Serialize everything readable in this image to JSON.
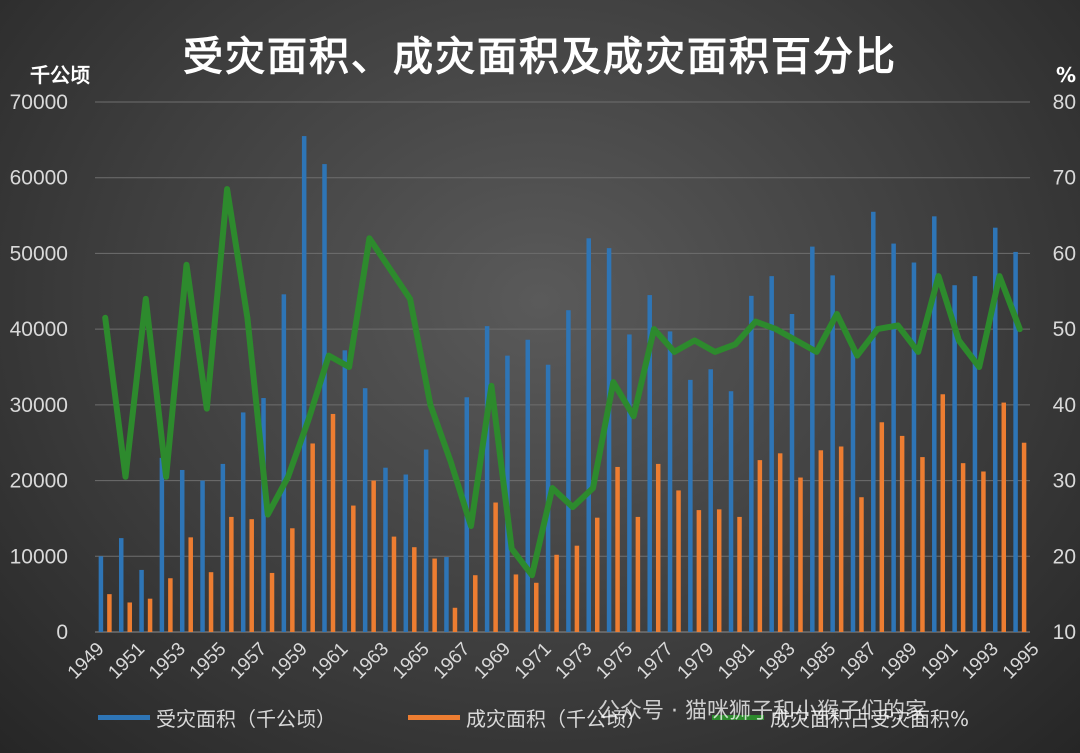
{
  "chart_data": {
    "type": "bar",
    "title": "受灾面积、成灾面积及成灾面积百分比",
    "y_left_unit": "千公顷",
    "y_right_unit": "%",
    "ylim_left": [
      0,
      70000
    ],
    "ylim_right": [
      10,
      80
    ],
    "y_left_ticks": [
      "0",
      "10000",
      "20000",
      "30000",
      "40000",
      "50000",
      "60000",
      "70000"
    ],
    "y_right_ticks": [
      "10",
      "20",
      "30",
      "40",
      "50",
      "60",
      "70",
      "80"
    ],
    "grid": true,
    "legend_position": "bottom",
    "x_tick_labels": [
      "1949",
      "1951",
      "1953",
      "1955",
      "1957",
      "1959",
      "1961",
      "1963",
      "1965",
      "1967",
      "1969",
      "1971",
      "1973",
      "1975",
      "1977",
      "1979",
      "1981",
      "1983",
      "1985",
      "1987",
      "1989",
      "1991",
      "1993",
      "1995"
    ],
    "categories": [
      "1950",
      "1951",
      "1952",
      "1953",
      "1954",
      "1955",
      "1956",
      "1957",
      "1958",
      "1959",
      "1960",
      "1961",
      "1962",
      "1963",
      "1964",
      "1965",
      "1966",
      "1967",
      "1968",
      "1969",
      "1970",
      "1971",
      "1972",
      "1973",
      "1974",
      "1975",
      "1976",
      "1977",
      "1978",
      "1979",
      "1980",
      "1981",
      "1982",
      "1983",
      "1984",
      "1985",
      "1986",
      "1987",
      "1988",
      "1989",
      "1990",
      "1991",
      "1992",
      "1993",
      "1994",
      "1995"
    ],
    "series": [
      {
        "name": "受灾面积（千公顷）",
        "color": "#2e75b6",
        "type": "bar",
        "axis": "left",
        "values": [
          10000,
          12400,
          8200,
          23000,
          21400,
          20000,
          22200,
          29000,
          30900,
          44600,
          65500,
          61800,
          37200,
          32200,
          21700,
          20800,
          24100,
          9900,
          31000,
          40400,
          36500,
          38600,
          35300,
          42500,
          52000,
          50700,
          39300,
          44500,
          39700,
          33300,
          34700,
          31800,
          44400,
          47000,
          42000,
          50900,
          47100,
          37800,
          55500,
          51300,
          48800,
          54900,
          45800,
          47000,
          53400,
          50200
        ]
      },
      {
        "name": "成灾面积（千公顷）",
        "color": "#ed7d31",
        "type": "bar",
        "axis": "left",
        "values": [
          5000,
          3900,
          4400,
          7100,
          12500,
          7900,
          15200,
          14900,
          7800,
          13700,
          24900,
          28800,
          16700,
          20000,
          12600,
          11200,
          9700,
          3200,
          7500,
          17100,
          7600,
          6500,
          10200,
          11400,
          15100,
          21800,
          15200,
          22200,
          18700,
          16100,
          16200,
          15200,
          22700,
          23600,
          20400,
          24000,
          24500,
          17800,
          27700,
          25900,
          23100,
          31400,
          22300,
          21200,
          30300,
          25000
        ]
      },
      {
        "name": "成灾面积占受灾面积%",
        "color": "#2d8a2d",
        "bar_color": "#70c040",
        "type": "line",
        "axis": "right",
        "values": [
          51.5,
          30.5,
          54,
          30.5,
          58.5,
          39.5,
          68.5,
          51.5,
          25.5,
          30.5,
          38,
          46.5,
          45,
          62,
          58,
          54,
          40,
          32.5,
          24,
          42.5,
          21,
          17.5,
          29,
          26.5,
          29,
          43,
          38.5,
          50,
          47,
          48.5,
          47,
          48,
          51,
          50,
          48.5,
          47,
          52,
          46.5,
          50,
          50.5,
          47,
          57,
          48.5,
          45,
          57,
          50
        ]
      }
    ]
  },
  "watermark": "公众号 · 猫咪狮子和小猴子们的家"
}
